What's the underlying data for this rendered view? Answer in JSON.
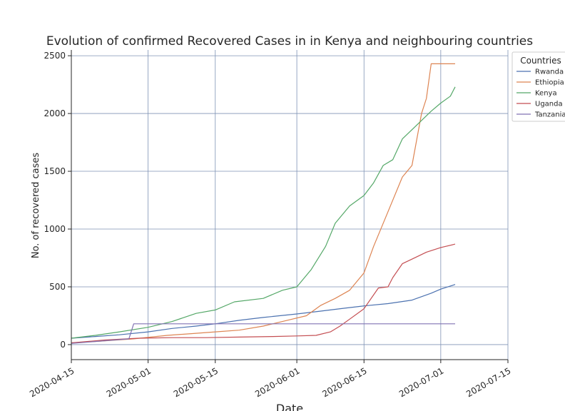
{
  "chart_data": {
    "type": "line",
    "title": "Evolution of confirmed Recovered Cases in in Kenya and neighbouring countries",
    "xlabel": "Date",
    "ylabel": "No. of recovered cases",
    "xlim": [
      "2020-04-15",
      "2020-07-15"
    ],
    "ylim": [
      -130,
      2550
    ],
    "x_ticks": [
      "2020-04-15",
      "2020-05-01",
      "2020-05-15",
      "2020-06-01",
      "2020-06-15",
      "2020-07-01",
      "2020-07-15"
    ],
    "y_ticks": [
      0,
      500,
      1000,
      1500,
      2000,
      2500
    ],
    "grid": true,
    "legend": {
      "title": "Countries",
      "position": "top-right, outside plot"
    },
    "colors": {
      "Rwanda": "#4c72b0",
      "Ethiopia": "#dd8452",
      "Kenya": "#55a868",
      "Uganda": "#c44e52",
      "Tanzania": "#8172b3",
      "grid": "#7f93b5",
      "axes": "#262626"
    },
    "series": [
      {
        "name": "Rwanda",
        "points": [
          [
            "2020-04-15",
            55
          ],
          [
            "2020-04-20",
            70
          ],
          [
            "2020-04-25",
            85
          ],
          [
            "2020-05-01",
            110
          ],
          [
            "2020-05-06",
            140
          ],
          [
            "2020-05-11",
            160
          ],
          [
            "2020-05-15",
            180
          ],
          [
            "2020-05-20",
            210
          ],
          [
            "2020-05-25",
            235
          ],
          [
            "2020-06-01",
            265
          ],
          [
            "2020-06-06",
            290
          ],
          [
            "2020-06-11",
            315
          ],
          [
            "2020-06-15",
            335
          ],
          [
            "2020-06-20",
            355
          ],
          [
            "2020-06-25",
            385
          ],
          [
            "2020-06-29",
            445
          ],
          [
            "2020-07-01",
            480
          ],
          [
            "2020-07-04",
            520
          ]
        ]
      },
      {
        "name": "Ethiopia",
        "points": [
          [
            "2020-04-15",
            15
          ],
          [
            "2020-04-21",
            30
          ],
          [
            "2020-04-28",
            50
          ],
          [
            "2020-05-05",
            80
          ],
          [
            "2020-05-10",
            95
          ],
          [
            "2020-05-15",
            110
          ],
          [
            "2020-05-20",
            125
          ],
          [
            "2020-05-25",
            160
          ],
          [
            "2020-05-30",
            210
          ],
          [
            "2020-06-03",
            250
          ],
          [
            "2020-06-06",
            340
          ],
          [
            "2020-06-09",
            400
          ],
          [
            "2020-06-12",
            470
          ],
          [
            "2020-06-15",
            620
          ],
          [
            "2020-06-17",
            850
          ],
          [
            "2020-06-20",
            1150
          ],
          [
            "2020-06-23",
            1450
          ],
          [
            "2020-06-25",
            1550
          ],
          [
            "2020-06-27",
            2000
          ],
          [
            "2020-06-28",
            2130
          ],
          [
            "2020-06-29",
            2430
          ],
          [
            "2020-07-04",
            2430
          ]
        ]
      },
      {
        "name": "Kenya",
        "points": [
          [
            "2020-04-15",
            55
          ],
          [
            "2020-04-20",
            80
          ],
          [
            "2020-04-25",
            110
          ],
          [
            "2020-05-01",
            150
          ],
          [
            "2020-05-06",
            200
          ],
          [
            "2020-05-11",
            270
          ],
          [
            "2020-05-15",
            300
          ],
          [
            "2020-05-19",
            370
          ],
          [
            "2020-05-25",
            400
          ],
          [
            "2020-05-29",
            470
          ],
          [
            "2020-06-01",
            500
          ],
          [
            "2020-06-04",
            650
          ],
          [
            "2020-06-07",
            850
          ],
          [
            "2020-06-09",
            1050
          ],
          [
            "2020-06-12",
            1200
          ],
          [
            "2020-06-15",
            1290
          ],
          [
            "2020-06-17",
            1400
          ],
          [
            "2020-06-19",
            1550
          ],
          [
            "2020-06-21",
            1600
          ],
          [
            "2020-06-23",
            1780
          ],
          [
            "2020-06-26",
            1900
          ],
          [
            "2020-06-29",
            2020
          ],
          [
            "2020-07-01",
            2090
          ],
          [
            "2020-07-03",
            2150
          ],
          [
            "2020-07-04",
            2230
          ]
        ]
      },
      {
        "name": "Uganda",
        "points": [
          [
            "2020-04-15",
            15
          ],
          [
            "2020-04-22",
            40
          ],
          [
            "2020-04-29",
            55
          ],
          [
            "2020-05-06",
            60
          ],
          [
            "2020-05-13",
            60
          ],
          [
            "2020-05-20",
            65
          ],
          [
            "2020-05-27",
            70
          ],
          [
            "2020-06-01",
            75
          ],
          [
            "2020-06-05",
            80
          ],
          [
            "2020-06-08",
            110
          ],
          [
            "2020-06-10",
            160
          ],
          [
            "2020-06-12",
            220
          ],
          [
            "2020-06-15",
            310
          ],
          [
            "2020-06-18",
            490
          ],
          [
            "2020-06-20",
            500
          ],
          [
            "2020-06-21",
            580
          ],
          [
            "2020-06-23",
            700
          ],
          [
            "2020-06-26",
            760
          ],
          [
            "2020-06-28",
            800
          ],
          [
            "2020-07-01",
            840
          ],
          [
            "2020-07-04",
            870
          ]
        ]
      },
      {
        "name": "Tanzania",
        "points": [
          [
            "2020-04-15",
            10
          ],
          [
            "2020-04-27",
            50
          ],
          [
            "2020-04-28",
            180
          ],
          [
            "2020-07-04",
            180
          ]
        ]
      }
    ]
  }
}
